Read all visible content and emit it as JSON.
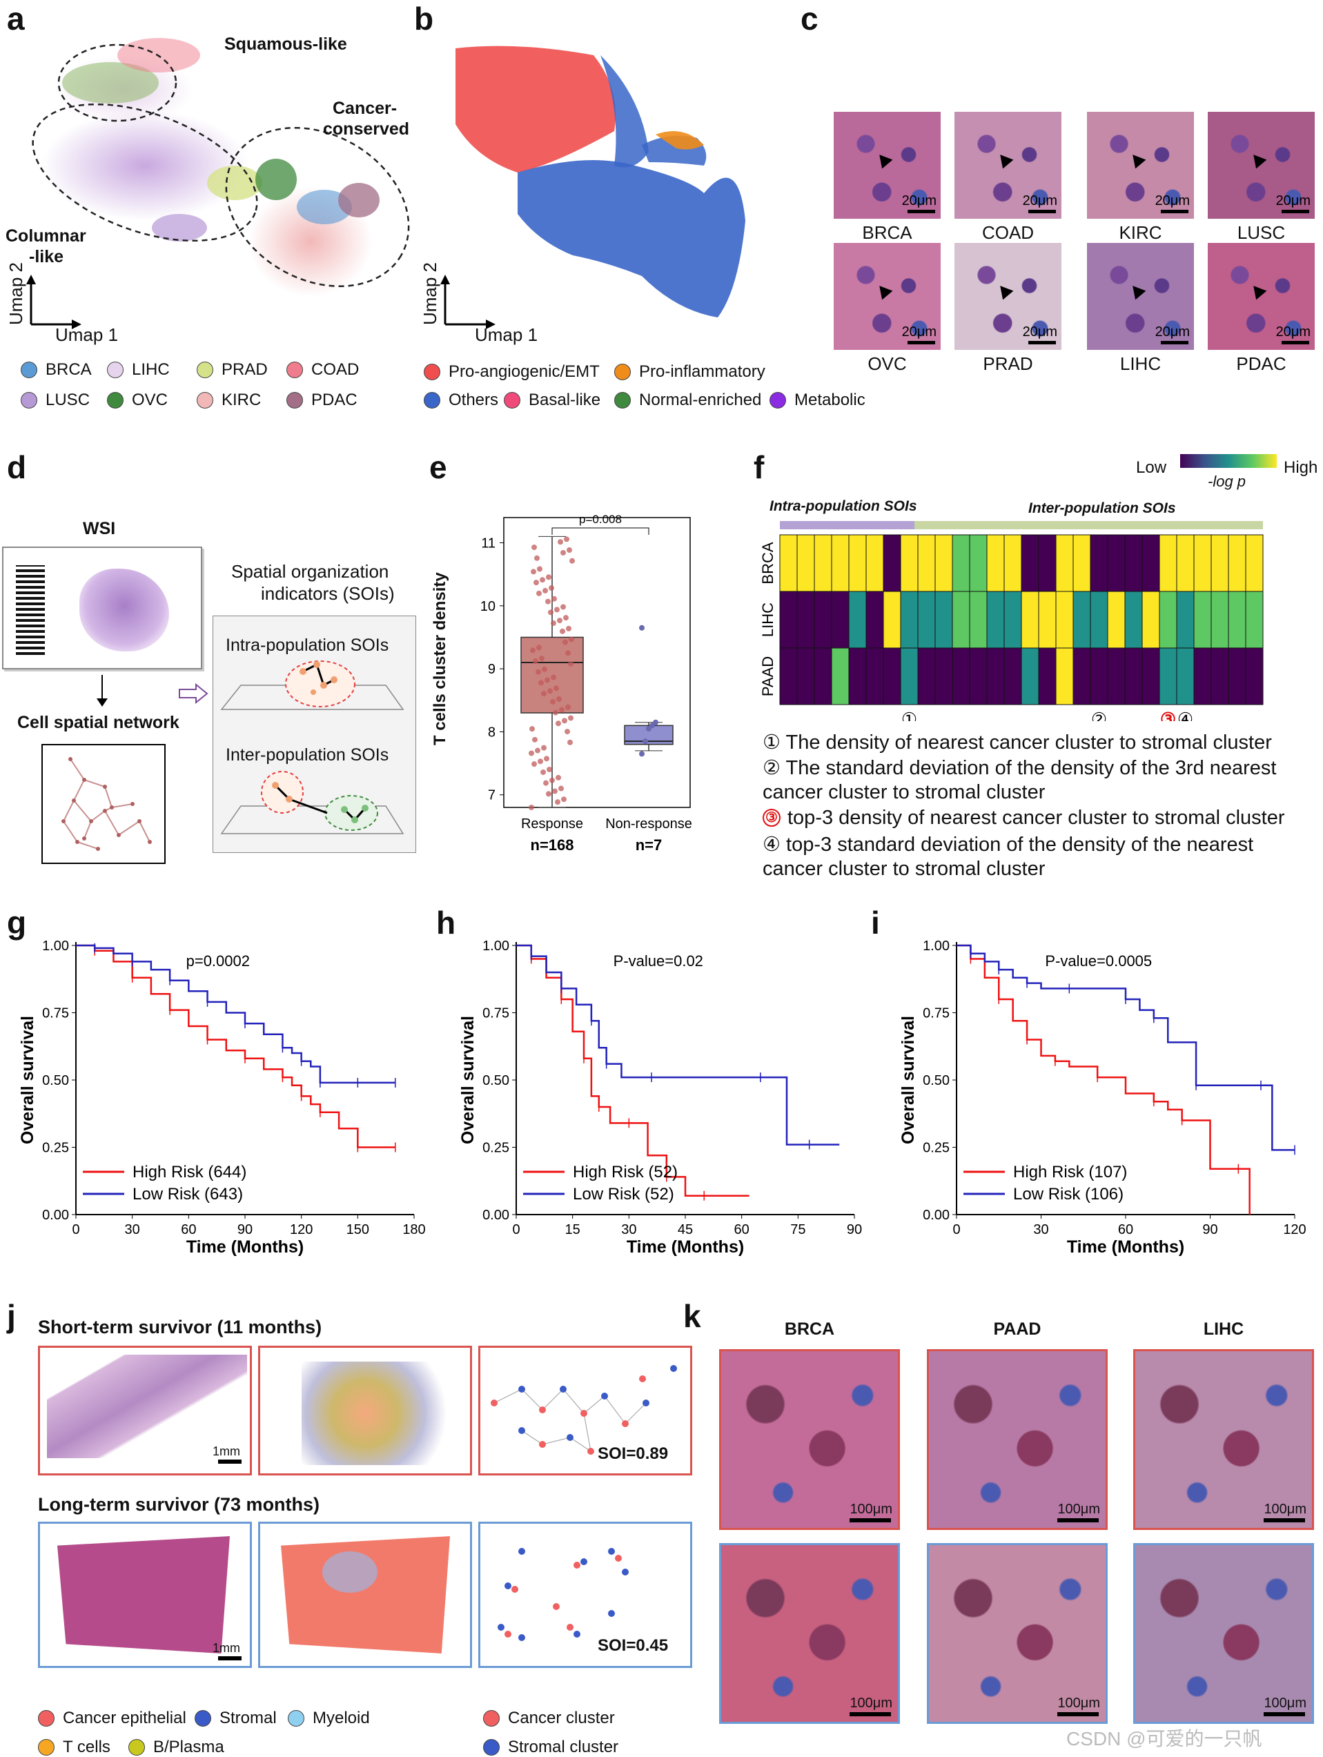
{
  "panels": {
    "a": "a",
    "b": "b",
    "c": "c",
    "d": "d",
    "e": "e",
    "f": "f",
    "g": "g",
    "h": "h",
    "i": "i",
    "j": "j",
    "k": "k"
  },
  "panel_a": {
    "regions": [
      "Squamous-like",
      "Cancer-\nconserved",
      "Columnar\n-like"
    ],
    "region_squamous": "Squamous-like",
    "region_cancer_1": "Cancer-",
    "region_cancer_2": "conserved",
    "region_columnar_1": "Columnar",
    "region_columnar_2": "-like",
    "axis_y": "Umap 2",
    "axis_x": "Umap 1",
    "legend": [
      {
        "label": "BRCA",
        "color": "#5b9bd5"
      },
      {
        "label": "LIHC",
        "color": "#e6d3ec"
      },
      {
        "label": "PRAD",
        "color": "#d6e28a"
      },
      {
        "label": "COAD",
        "color": "#f07d8d"
      },
      {
        "label": "LUSC",
        "color": "#b69ad6"
      },
      {
        "label": "OVC",
        "color": "#3f8a3e"
      },
      {
        "label": "KIRC",
        "color": "#f2b8b8"
      },
      {
        "label": "PDAC",
        "color": "#a26f87"
      }
    ]
  },
  "panel_b": {
    "axis_y": "Umap 2",
    "axis_x": "Umap 1",
    "legend": [
      {
        "label": "Pro-angiogenic/EMT",
        "color": "#f04e4e"
      },
      {
        "label": "Pro-inflammatory",
        "color": "#f08c1a"
      },
      {
        "label": "Others",
        "color": "#3a66c9"
      },
      {
        "label": "Basal-like",
        "color": "#f04a7a"
      },
      {
        "label": "Normal-enriched",
        "color": "#3f8a3e"
      },
      {
        "label": "Metabolic",
        "color": "#8b2be2"
      }
    ]
  },
  "panel_c": {
    "scale": "20μm",
    "tiles": [
      "BRCA",
      "COAD",
      "KIRC",
      "LUSC",
      "OVC",
      "PRAD",
      "LIHC",
      "PDAC"
    ]
  },
  "panel_d": {
    "wsi": "WSI",
    "network": "Cell spatial network",
    "soi_title_1": "Spatial organization",
    "soi_title_2": "indicators (SOIs)",
    "intra": "Intra-population SOIs",
    "inter": "Inter-population SOIs"
  },
  "panel_e": {
    "chart_data": {
      "type": "box",
      "categories": [
        "Response",
        "Non-response"
      ],
      "n_labels": [
        "n=168",
        "n=7"
      ],
      "ylabel": "T cells cluster density",
      "ylim": [
        6.8,
        11.4
      ],
      "yticks": [
        7,
        8,
        9,
        10,
        11
      ],
      "pvalue": "p=0.008",
      "boxes": [
        {
          "name": "Response",
          "min": 6.8,
          "q1": 8.3,
          "median": 9.1,
          "q3": 9.5,
          "max": 11.1,
          "color": "#c9837f"
        },
        {
          "name": "Non-response",
          "min": 7.7,
          "q1": 7.8,
          "median": 7.85,
          "q3": 8.1,
          "max": 8.15,
          "color": "#8f8fcf",
          "outlier": 9.65
        }
      ]
    }
  },
  "panel_f": {
    "colorbar_low": "Low",
    "colorbar_high": "High",
    "colorbar_label": "-log p",
    "group_intra": "Intra-population SOIs",
    "group_inter": "Inter-population SOIs",
    "chart_data": {
      "type": "heatmap",
      "rows": [
        "BRCA",
        "LIHC",
        "PAAD"
      ],
      "n_cols": 28,
      "levels_note": "0=dark purple,1=teal,2=green,3=yellow",
      "values": [
        [
          3,
          3,
          3,
          3,
          3,
          3,
          0,
          3,
          3,
          3,
          2,
          2,
          3,
          3,
          0,
          0,
          3,
          3,
          0,
          0,
          0,
          0,
          3,
          3,
          3,
          3,
          3,
          3
        ],
        [
          0,
          0,
          0,
          0,
          1,
          0,
          3,
          1,
          1,
          1,
          2,
          2,
          1,
          1,
          3,
          3,
          3,
          1,
          1,
          3,
          1,
          3,
          2,
          1,
          2,
          2,
          2,
          2
        ],
        [
          0,
          0,
          0,
          2,
          0,
          0,
          0,
          1,
          0,
          0,
          0,
          0,
          0,
          0,
          1,
          0,
          3,
          0,
          0,
          0,
          0,
          0,
          1,
          1,
          0,
          0,
          0,
          0
        ]
      ],
      "markers": [
        "①",
        "②",
        "③",
        "④"
      ],
      "notes": [
        "① The density of nearest cancer cluster to stromal cluster",
        "② The standard deviation of the density of the 3rd nearest",
        "cancer cluster to stromal cluster",
        "top-3 density of nearest cancer cluster to stromal cluster",
        "④ top-3 standard deviation of the density of the nearest",
        "cancer cluster to stromal cluster"
      ]
    }
  },
  "km_common": {
    "ylabel": "Overall survival",
    "xlabel": "Time (Months)"
  },
  "panel_g": {
    "chart_data": {
      "type": "line",
      "title": "p=0.0002",
      "xlim": [
        0,
        180
      ],
      "xticks": [
        0,
        30,
        60,
        90,
        120,
        150,
        180
      ],
      "ylim": [
        0,
        1
      ],
      "yticks": [
        "0.00",
        "0.25",
        "0.50",
        "0.75",
        "1.00"
      ],
      "series": [
        {
          "name": "High Risk (644)",
          "color": "#e11",
          "x": [
            0,
            10,
            20,
            30,
            40,
            50,
            60,
            70,
            80,
            90,
            100,
            110,
            115,
            120,
            125,
            130,
            140,
            150,
            160,
            170
          ],
          "y": [
            1.0,
            0.98,
            0.94,
            0.88,
            0.82,
            0.76,
            0.7,
            0.65,
            0.61,
            0.58,
            0.54,
            0.51,
            0.48,
            0.44,
            0.41,
            0.38,
            0.32,
            0.25,
            0.25,
            0.25
          ]
        },
        {
          "name": "Low Risk (643)",
          "color": "#22b",
          "x": [
            0,
            10,
            20,
            30,
            40,
            50,
            60,
            70,
            80,
            90,
            100,
            110,
            115,
            120,
            125,
            130,
            140,
            150,
            160,
            170
          ],
          "y": [
            1.0,
            0.99,
            0.97,
            0.94,
            0.91,
            0.87,
            0.83,
            0.79,
            0.75,
            0.71,
            0.67,
            0.62,
            0.6,
            0.57,
            0.55,
            0.49,
            0.49,
            0.49,
            0.49,
            0.49
          ]
        }
      ]
    }
  },
  "panel_h": {
    "chart_data": {
      "type": "line",
      "title": "P-value=0.02",
      "xlim": [
        0,
        90
      ],
      "xticks": [
        0,
        15,
        30,
        45,
        60,
        75,
        90
      ],
      "ylim": [
        0,
        1
      ],
      "yticks": [
        "0.00",
        "0.25",
        "0.50",
        "0.75",
        "1.00"
      ],
      "series": [
        {
          "name": "High Risk (52)",
          "color": "#e11",
          "x": [
            0,
            4,
            8,
            12,
            15,
            18,
            20,
            22,
            25,
            30,
            35,
            40,
            45,
            50,
            62
          ],
          "y": [
            1.0,
            0.95,
            0.88,
            0.8,
            0.68,
            0.58,
            0.44,
            0.4,
            0.34,
            0.34,
            0.22,
            0.14,
            0.07,
            0.07,
            0.07
          ]
        },
        {
          "name": "Low Risk (52)",
          "color": "#22b",
          "x": [
            0,
            4,
            8,
            12,
            16,
            20,
            22,
            24,
            28,
            36,
            50,
            65,
            72,
            78,
            86
          ],
          "y": [
            1.0,
            0.96,
            0.9,
            0.84,
            0.78,
            0.72,
            0.62,
            0.56,
            0.51,
            0.51,
            0.51,
            0.51,
            0.26,
            0.26,
            0.26
          ]
        }
      ]
    }
  },
  "panel_i": {
    "chart_data": {
      "type": "line",
      "title": "P-value=0.0005",
      "xlim": [
        0,
        120
      ],
      "xticks": [
        0,
        30,
        60,
        90,
        120
      ],
      "ylim": [
        0,
        1
      ],
      "yticks": [
        "0.00",
        "0.25",
        "0.50",
        "0.75",
        "1.00"
      ],
      "series": [
        {
          "name": "High Risk (107)",
          "color": "#e11",
          "x": [
            0,
            5,
            10,
            15,
            20,
            25,
            30,
            35,
            40,
            50,
            60,
            70,
            75,
            80,
            90,
            100,
            104
          ],
          "y": [
            1.0,
            0.95,
            0.88,
            0.8,
            0.72,
            0.65,
            0.59,
            0.57,
            0.55,
            0.51,
            0.45,
            0.42,
            0.39,
            0.35,
            0.17,
            0.17,
            0.0
          ]
        },
        {
          "name": "Low Risk (106)",
          "color": "#22b",
          "x": [
            0,
            5,
            10,
            15,
            20,
            25,
            30,
            40,
            50,
            60,
            65,
            70,
            75,
            85,
            95,
            108,
            112,
            120
          ],
          "y": [
            1.0,
            0.97,
            0.94,
            0.91,
            0.88,
            0.86,
            0.84,
            0.84,
            0.84,
            0.8,
            0.76,
            0.73,
            0.64,
            0.48,
            0.48,
            0.48,
            0.24,
            0.24
          ]
        }
      ]
    }
  },
  "panel_j": {
    "short_title": "Short-term survivor (11 months)",
    "long_title": "Long-term survivor (73 months)",
    "scale": "1mm",
    "soi_short": "SOI=0.89",
    "soi_long": "SOI=0.45",
    "legend_cells": [
      {
        "label": "Cancer epithelial",
        "color": "#f06060"
      },
      {
        "label": "Stromal",
        "color": "#3a5bc7"
      },
      {
        "label": "Myeloid",
        "color": "#8fd0f0"
      },
      {
        "label": "T cells",
        "color": "#f5a623"
      },
      {
        "label": "B/Plasma",
        "color": "#c8c81e"
      }
    ],
    "legend_clusters": [
      {
        "label": "Cancer cluster",
        "color": "#f06060"
      },
      {
        "label": "Stromal cluster",
        "color": "#3a5bc7"
      }
    ]
  },
  "panel_k": {
    "columns": [
      "BRCA",
      "PAAD",
      "LIHC"
    ],
    "scale": "100μm"
  },
  "watermark": "CSDN @可爱的一只帆"
}
